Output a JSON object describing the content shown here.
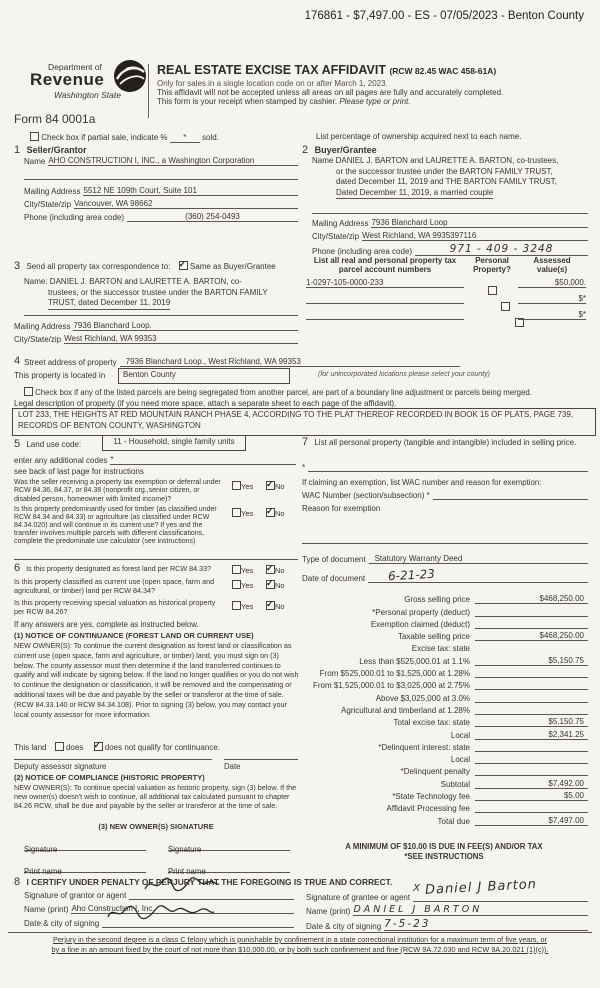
{
  "colors": {
    "paper": "#f5f4ef",
    "ink": "#3a3632"
  },
  "stamp_line": "176861 - $7,497.00 - ES - 07/05/2023 - Benton County",
  "header": {
    "dept_small": "Department of",
    "dept_big": "Revenue",
    "dept_state": "Washington State",
    "form_number": "Form 84 0001a",
    "title": "REAL ESTATE EXCISE TAX AFFIDAVIT",
    "title_ref": "(RCW 82.45 WAC 458-61A)",
    "sub1": "Only for sales in a single location code on or after March 1, 2023.",
    "sub2": "This affidavit will not be accepted unless all areas on all pages are fully and accurately completed.",
    "sub3": "This form is your receipt when stamped by cashier.",
    "sub3_em": "Please type or print."
  },
  "partial_sale": {
    "label": "Check box if partial sale, indicate %",
    "pct": "*",
    "suffix": "sold.",
    "right_note": "List percentage of ownership acquired next to each name."
  },
  "seller": {
    "num": "1",
    "heading": "Seller/Grantor",
    "name_label": "Name",
    "name": "AHO CONSTRUCTION I, INC., a Washington Corporation",
    "mail_label": "Mailing Address",
    "mail": "5512 NE 109th Court, Suite 101",
    "city_label": "City/State/zip",
    "city": "Vancouver, WA  98662",
    "phone_label": "Phone (including area code)",
    "phone": "(360) 254-0493"
  },
  "buyer": {
    "num": "2",
    "heading": "Buyer/Grantee",
    "name_label": "Name",
    "name_lines": [
      "DANIEL J. BARTON and LAURETTE A. BARTON, co-trustees,",
      "or the successor trustee under the BARTON FAMILY TRUST,",
      "dated December 11, 2019 and THE BARTON FAMILY TRUST,",
      "Dated December 11, 2019, a married couple"
    ],
    "mail_label": "Mailing Address",
    "mail": "7936 Blanchard Loop",
    "city_label": "City/State/zip",
    "city": "West Richland, WA  9935397116",
    "phone_label": "Phone (including area code)",
    "phone": "971 - 409 - 3248"
  },
  "correspondence": {
    "num": "3",
    "heading": "Send all property tax correspondence to:",
    "same_label": "Same as Buyer/Grantee",
    "same_checked": true,
    "name_label": "Name:",
    "name_lines": [
      "DANIEL J. BARTON and LAURETTE A. BARTON, co-",
      "trustees, or the successor trustee under the BARTON FAMILY",
      "TRUST, dated December 11, 2019"
    ],
    "mail_label": "Mailing Address",
    "mail": "7936 Blanchard Loop.",
    "city_label": "City/State/zip",
    "city": "West Richland, WA  99353"
  },
  "parcels": {
    "h1_line1": "List all real and personal property tax",
    "h1_line2": "parcel account numbers",
    "h2_line1": "Personal",
    "h2_line2": "Property?",
    "h3_line1": "Assessed",
    "h3_line2": "value(s)",
    "rows": [
      {
        "number": "1-0297-105-0000-233",
        "personal_checked": false,
        "assessed": "$50,000."
      },
      {
        "number": "",
        "personal_checked": false,
        "assessed": "$*"
      },
      {
        "number": "",
        "personal_checked": false,
        "assessed": "$*"
      }
    ]
  },
  "property": {
    "num": "4",
    "street_label": "Street address of property",
    "street": "7936 Blanchard Loop., West Richland, WA 99353",
    "located_label": "This property is located in",
    "located_value": "Benton County",
    "located_note": "(for unincorporated locations please select your county)",
    "segregated_label": "Check box if any of the listed parcels are being segregated from another parcel, are part of a boundary line adjustment or parcels being merged.",
    "segregated_checked": false,
    "legal_label": "Legal description of property (if you need more space, attach a separate sheet to each page of the affidavit).",
    "legal": "LOT 233, THE HEIGHTS AT RED MOUNTAIN RANCH PHASE 4, ACCORDING TO THE PLAT THEREOF RECORDED IN BOOK 15 OF PLATS, PAGE 739, RECORDS OF BENTON COUNTY, WASHINGTON"
  },
  "land_use": {
    "num": "5",
    "label": "Land use code:",
    "code": "11 - Household, single family units",
    "additional_label": "enter any additional codes",
    "additional_value": "*",
    "see_back": "see back of last page for instructions",
    "yes_label": "Yes",
    "no_label": "No",
    "q1": "Was the seller receiving a property tax exemption or deferral under RCW 84.36, 84.37, or 84.38 (nonprofit org.,senior citizen, or disabled person, homeowner with limited income)?",
    "q1_yes": false,
    "q1_no": true,
    "q2": "Is this property predominantly used for timber (as classified under RCW 84.34 and 84.33) or agriculture (as classified under RCW 84.34.020) and will continue in its current use? If yes and the transfer involves multiple parcels with different classifications, complete the predominate use calculator (see instructions)",
    "q2_yes": false,
    "q2_no": true
  },
  "section7": {
    "num": "7",
    "text": "List all personal property (tangible and intangible) included in selling price.",
    "star": "*",
    "exemption_line": "If claiming an exemption, list WAC number and reason for exemption:",
    "wac_label": "WAC Number (section/subsection) *",
    "reason_label": "Reason for exemption",
    "doc_type_label": "Type of document",
    "doc_type": "Statutory Warranty Deed",
    "doc_date_label": "Date of document",
    "doc_date": "6-21-23"
  },
  "section6": {
    "num": "6",
    "yes_label": "Yes",
    "no_label": "No",
    "q1": "Is this property designated as forest land per RCW 84.33?",
    "q1_yes": false,
    "q1_no": true,
    "q2": "Is this property classified as current use (open space, farm and agricultural, or timber) land per RCW 84.34?",
    "q2_yes": false,
    "q2_no": true,
    "q3": "Is this property receiving special valuation as historical property per RCW 84.26?",
    "q3_yes": false,
    "q3_no": true,
    "if_any": "If any answers are yes, complete as instructed below.",
    "n1_title": "(1) NOTICE OF CONTINUANCE (FOREST LAND OR CURRENT USE)",
    "n1_body": "NEW OWNER(S): To continue the current designation as forest land or classification as current use (open space, farm and agriculture, or timber) land, you must sign on (3) below. The county assessor must then determine if the land transferred continues to qualify and will indicate by signing below. If the land no longer qualifies or you do not wish to continue the designation or classification, it will be removed and the compensating or additional taxes will be due and payable by the seller or transferor at the time of sale. (RCW 84.33.140 or RCW 84.34.108). Prior to signing (3) below, you may contact your local county assessor for more information.",
    "land_pre": "This land",
    "does_label": "does",
    "does_checked": false,
    "does_not_label": "does not qualify for continuance.",
    "does_not_checked": true,
    "deputy_label": "Deputy assessor signature",
    "date_label": "Date",
    "n2_title": "(2) NOTICE OF COMPLIANCE (HISTORIC PROPERTY)",
    "n2_body": "NEW OWNER(S): To continue special valuation as historic property, sign (3) below. If the new owner(s) doesn't wish to continue, all additional tax calculated pursuant to chapter 84.26 RCW, shall be due and payable by the seller or transferor at the time of sale.",
    "n3_title": "(3) NEW OWNER(S) SIGNATURE",
    "signature_label": "Signature",
    "print_label": "Print name"
  },
  "tax": {
    "rows": [
      {
        "label": "Gross selling price",
        "value": "$468,250.00"
      },
      {
        "label": "*Personal property (deduct)",
        "value": ""
      },
      {
        "label": "Exemption claimed (deduct)",
        "value": ""
      },
      {
        "label": "Taxable selling price",
        "value": "$468,250.00"
      },
      {
        "label": "Excise tax:  state",
        "value": "",
        "line": false
      },
      {
        "label": "Less than $525,000.01 at 1.1%",
        "value": "$5,150.75"
      },
      {
        "label": "From $525,000.01 to $1,525,000 at 1.28%",
        "value": ""
      },
      {
        "label": "From $1,525,000.01 to $3,025,000 at 2.75%",
        "value": ""
      },
      {
        "label": "Above $3,025,000 at 3.0%",
        "value": ""
      },
      {
        "label": "Agricultural and timberland at 1.28%",
        "value": ""
      },
      {
        "label": "Total excise tax:  state",
        "value": "$5,150.75"
      },
      {
        "label": "Local",
        "value": "$2,341.25"
      },
      {
        "label": "*Delinquent interest:  state",
        "value": ""
      },
      {
        "label": "Local",
        "value": ""
      },
      {
        "label": "*Delinquent penalty",
        "value": ""
      },
      {
        "label": "Subtotal",
        "value": "$7,492.00"
      },
      {
        "label": "*State Technology fee",
        "value": "$5.00"
      },
      {
        "label": "Affidavit Processing fee",
        "value": ""
      },
      {
        "label": "Total due",
        "value": "$7,497.00"
      }
    ],
    "min_note": "A MINIMUM OF $10.00 IS DUE IN FEE(S) AND/OR TAX",
    "see_note": "*SEE INSTRUCTIONS"
  },
  "certify": {
    "num": "8",
    "heading": "I CERTIFY UNDER PENALTY OF PERJURY THAT THE FOREGOING IS TRUE AND CORRECT.",
    "grantor_sig_label": "Signature of grantor or agent",
    "grantor_name_label": "Name (print)",
    "grantor_name": "Aho Construction I, Inc.",
    "grantor_date_label": "Date & city of signing",
    "grantee_sig_label": "Signature of grantee or agent",
    "grantee_sig_x": "X",
    "grantee_sig": "Daniel J Barton",
    "grantee_name_label": "Name (print)",
    "grantee_name": "DANIEL  J  BARTON",
    "grantee_date_label": "Date & city of signing",
    "grantee_date": "7-5-23"
  },
  "perjury": {
    "line1": "Perjury in the second degree is a class C felony which is punishable by confinement in a state correctional institution for a maximum term of five years, or",
    "line2": "by a fine in an amount fixed by the court of not more than $10,000.00, or by both such confinement and fine (RCW 9A.72.030 and RCW 9A.20.021 (1)(c))."
  }
}
